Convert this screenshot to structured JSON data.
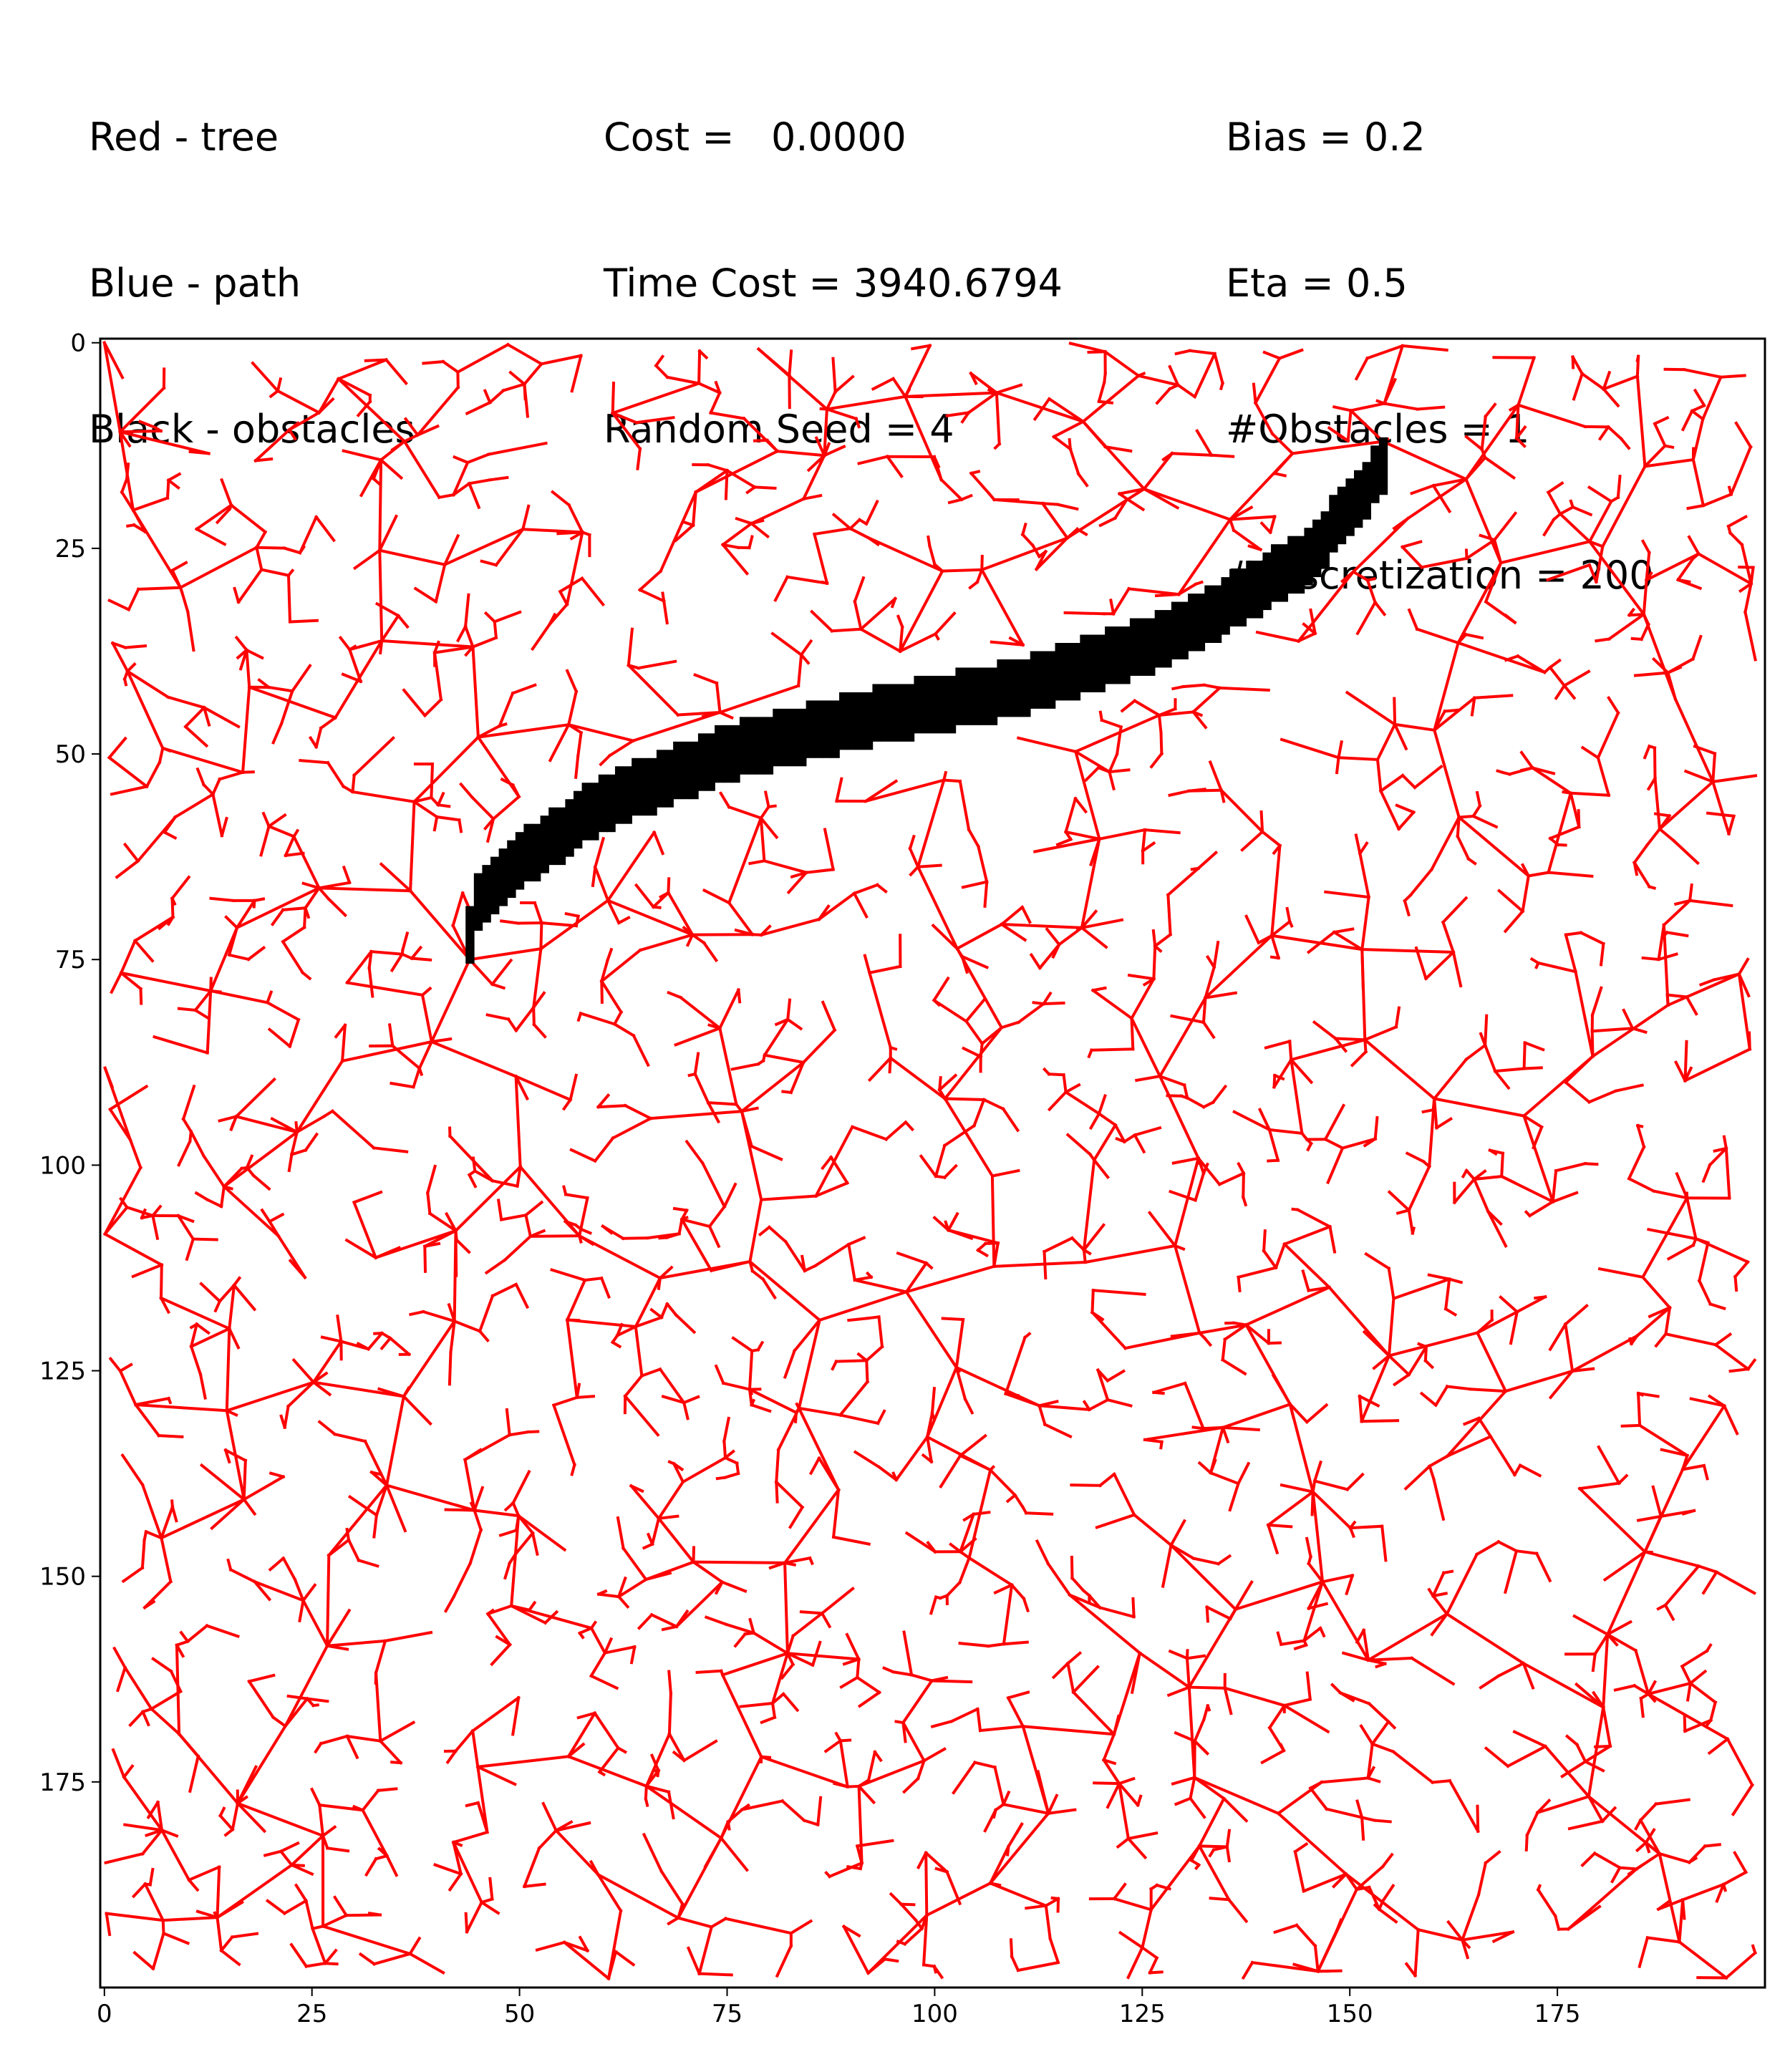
{
  "header": {
    "col1": [
      "Red - tree",
      "Blue - path",
      "Black - obstacles"
    ],
    "col2": [
      "Cost =   0.0000",
      "Time Cost = 3940.6794",
      "Random Seed = 4"
    ],
    "col3": [
      "Bias = 0.2",
      "Eta = 0.5",
      "#Obstacles = 1",
      "#Discretization = 200"
    ]
  },
  "colors": {
    "tree": "#ff0000",
    "path": "#0000ff",
    "obstacle": "#000000"
  },
  "chart_data": {
    "type": "scatter",
    "title": "",
    "xlabel": "",
    "ylabel": "",
    "xlim": [
      0,
      199
    ],
    "ylim": [
      199,
      0
    ],
    "y_inverted": true,
    "grid": false,
    "x_ticks": [
      "0",
      "25",
      "50",
      "75",
      "100",
      "125",
      "150",
      "175"
    ],
    "y_ticks": [
      "0",
      "25",
      "50",
      "75",
      "100",
      "125",
      "150",
      "175"
    ],
    "tree_roots": [
      [
        0,
        0
      ],
      [
        44,
        75
      ],
      [
        154,
        12
      ]
    ],
    "obstacle_centerline": [
      [
        44,
        72
      ],
      [
        45,
        68
      ],
      [
        50,
        63
      ],
      [
        60,
        56
      ],
      [
        75,
        50
      ],
      [
        90,
        46
      ],
      [
        110,
        42
      ],
      [
        125,
        37
      ],
      [
        135,
        32
      ],
      [
        145,
        26
      ],
      [
        150,
        20
      ],
      [
        154,
        15
      ]
    ],
    "obstacle_half_width": 3
  }
}
